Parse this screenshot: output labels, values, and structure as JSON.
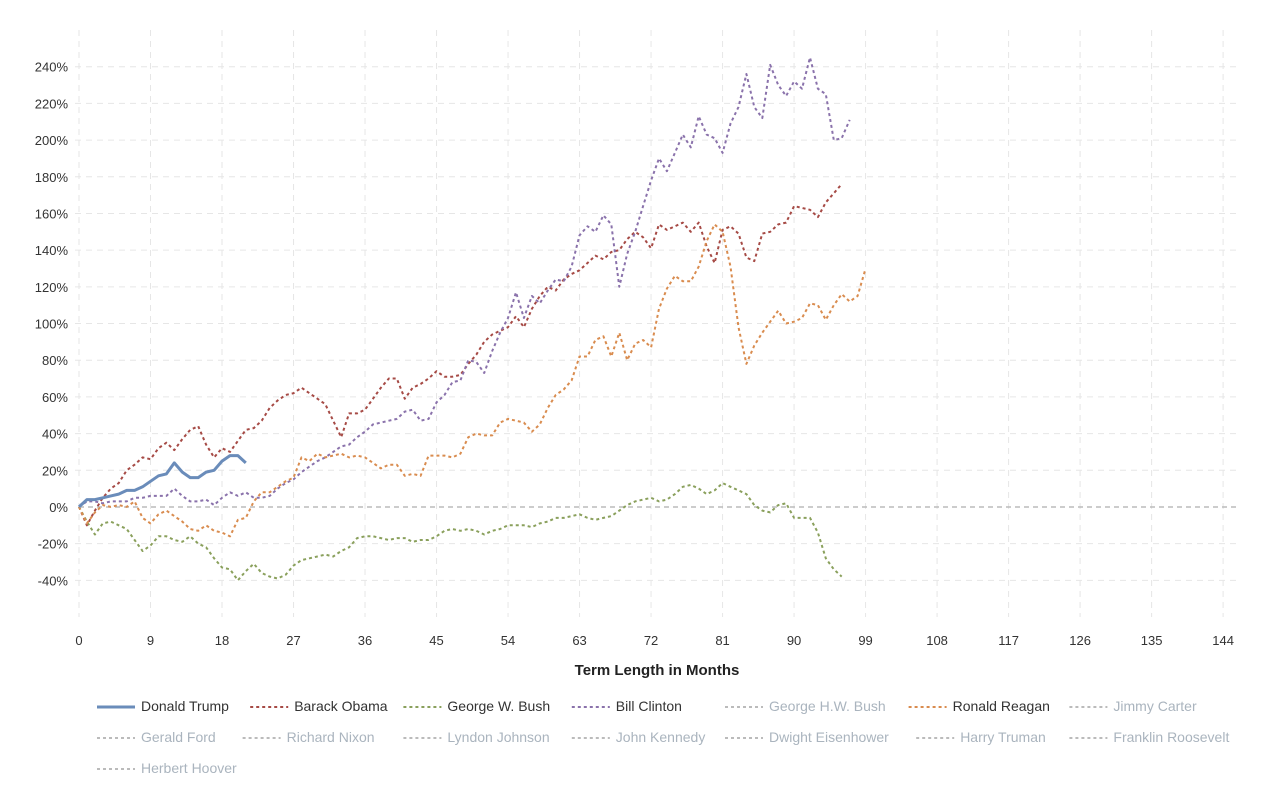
{
  "chart_data": {
    "type": "line",
    "title": "",
    "xlabel": "Term Length in Months",
    "ylabel": "",
    "xlim": [
      0,
      146
    ],
    "ylim": [
      -60,
      260
    ],
    "grid": true,
    "legend_position": "bottom",
    "x_ticks": [
      0,
      9,
      18,
      27,
      36,
      45,
      54,
      63,
      72,
      81,
      90,
      99,
      108,
      117,
      126,
      135,
      144
    ],
    "y_ticks": [
      -40,
      -20,
      0,
      20,
      40,
      60,
      80,
      100,
      120,
      140,
      160,
      180,
      200,
      220,
      240
    ],
    "y_tick_labels": [
      "-40%",
      "-20%",
      "0%",
      "20%",
      "40%",
      "60%",
      "80%",
      "100%",
      "120%",
      "140%",
      "160%",
      "180%",
      "200%",
      "220%",
      "240%"
    ],
    "series": [
      {
        "name": "Donald Trump",
        "color": "#6a8cba",
        "style": "solid",
        "active": true,
        "values": [
          0,
          4,
          4,
          5,
          6,
          7,
          9,
          9,
          11,
          14,
          17,
          18,
          24,
          19,
          16,
          16,
          19,
          20,
          25,
          28,
          28,
          24
        ]
      },
      {
        "name": "Barack Obama",
        "color": "#a64a45",
        "style": "dashed",
        "active": true,
        "values": [
          0,
          -10,
          -2,
          5,
          10,
          13,
          20,
          23,
          27,
          26,
          32,
          35,
          31,
          37,
          42,
          44,
          34,
          27,
          32,
          30,
          36,
          42,
          43,
          47,
          54,
          58,
          61,
          62,
          65,
          62,
          59,
          56,
          47,
          38,
          51,
          51,
          53,
          59,
          65,
          70,
          70,
          59,
          65,
          67,
          70,
          74,
          71,
          71,
          72,
          78,
          83,
          90,
          94,
          96,
          98,
          104,
          98,
          108,
          115,
          120,
          118,
          124,
          127,
          129,
          133,
          137,
          135,
          139,
          140,
          146,
          150,
          147,
          141,
          154,
          151,
          153,
          155,
          150,
          155,
          142,
          133,
          151,
          153,
          149,
          136,
          134,
          149,
          150,
          154,
          155,
          164,
          163,
          162,
          158,
          166,
          171,
          176
        ]
      },
      {
        "name": "George W. Bush",
        "color": "#8aa05c",
        "style": "dashed",
        "active": true,
        "values": [
          0,
          -8,
          -15,
          -9,
          -8,
          -10,
          -12,
          -18,
          -24,
          -21,
          -16,
          -16,
          -18,
          -19,
          -16,
          -20,
          -22,
          -28,
          -33,
          -34,
          -40,
          -35,
          -31,
          -36,
          -38,
          -39,
          -37,
          -32,
          -29,
          -28,
          -27,
          -26,
          -27,
          -24,
          -22,
          -17,
          -16,
          -16,
          -17,
          -18,
          -17,
          -17,
          -19,
          -18,
          -18,
          -16,
          -13,
          -12,
          -13,
          -12,
          -13,
          -15,
          -13,
          -12,
          -10,
          -10,
          -10,
          -11,
          -9,
          -8,
          -6,
          -6,
          -5,
          -4,
          -6,
          -7,
          -6,
          -5,
          -2,
          1,
          3,
          4,
          5,
          3,
          4,
          7,
          11,
          12,
          10,
          7,
          9,
          13,
          11,
          9,
          7,
          1,
          -2,
          -3,
          1,
          2,
          -6,
          -6,
          -6,
          -14,
          -28,
          -34,
          -38
        ]
      },
      {
        "name": "Bill Clinton",
        "color": "#8a72ab",
        "style": "dashed",
        "active": true,
        "values": [
          0,
          3,
          3,
          2,
          3,
          3,
          3,
          5,
          5,
          6,
          6,
          6,
          10,
          6,
          3,
          3,
          4,
          1,
          5,
          8,
          6,
          8,
          5,
          5,
          6,
          10,
          13,
          15,
          19,
          22,
          25,
          27,
          30,
          33,
          34,
          38,
          41,
          45,
          46,
          47,
          48,
          52,
          53,
          47,
          48,
          57,
          61,
          68,
          69,
          80,
          79,
          73,
          85,
          95,
          103,
          117,
          103,
          115,
          111,
          118,
          124,
          123,
          131,
          148,
          153,
          150,
          159,
          154,
          120,
          138,
          150,
          164,
          178,
          190,
          183,
          193,
          203,
          196,
          213,
          203,
          201,
          193,
          209,
          218,
          236,
          218,
          212,
          241,
          230,
          224,
          232,
          228,
          245,
          228,
          225,
          200,
          201,
          211
        ]
      },
      {
        "name": "George H.W. Bush",
        "color": "#c7ccd1",
        "style": "dashed",
        "active": false,
        "values": []
      },
      {
        "name": "Ronald Reagan",
        "color": "#d98c4f",
        "style": "dashed",
        "active": true,
        "values": [
          0,
          -9,
          -3,
          1,
          0,
          1,
          0,
          3,
          -6,
          -9,
          -4,
          -2,
          -5,
          -8,
          -12,
          -13,
          -10,
          -13,
          -14,
          -16,
          -7,
          -6,
          3,
          8,
          8,
          11,
          14,
          16,
          27,
          25,
          29,
          27,
          28,
          29,
          27,
          28,
          27,
          24,
          21,
          23,
          23,
          17,
          18,
          17,
          28,
          28,
          28,
          27,
          29,
          38,
          40,
          39,
          39,
          46,
          48,
          47,
          46,
          41,
          45,
          54,
          61,
          64,
          69,
          82,
          82,
          91,
          93,
          82,
          95,
          80,
          89,
          91,
          87,
          108,
          119,
          126,
          123,
          123,
          131,
          145,
          154,
          150,
          131,
          98,
          78,
          88,
          95,
          101,
          107,
          100,
          101,
          103,
          111,
          110,
          102,
          110,
          116,
          112,
          115,
          130
        ]
      },
      {
        "name": "Jimmy Carter",
        "color": "#c7ccd1",
        "style": "dashed",
        "active": false,
        "values": []
      },
      {
        "name": "Gerald Ford",
        "color": "#c7ccd1",
        "style": "dashed",
        "active": false,
        "values": []
      },
      {
        "name": "Richard Nixon",
        "color": "#c7ccd1",
        "style": "dashed",
        "active": false,
        "values": []
      },
      {
        "name": "Lyndon Johnson",
        "color": "#c7ccd1",
        "style": "dashed",
        "active": false,
        "values": []
      },
      {
        "name": "John Kennedy",
        "color": "#c7ccd1",
        "style": "dashed",
        "active": false,
        "values": []
      },
      {
        "name": "Dwight Eisenhower",
        "color": "#c7ccd1",
        "style": "dashed",
        "active": false,
        "values": []
      },
      {
        "name": "Harry Truman",
        "color": "#c7ccd1",
        "style": "dashed",
        "active": false,
        "values": []
      },
      {
        "name": "Franklin Roosevelt",
        "color": "#c7ccd1",
        "style": "dashed",
        "active": false,
        "values": []
      },
      {
        "name": "Herbert Hoover",
        "color": "#c7ccd1",
        "style": "dashed",
        "active": false,
        "values": []
      }
    ],
    "zero_line_color": "#bbbbbb",
    "inactive_text_color": "#aab4be",
    "active_text_color": "#333333"
  }
}
